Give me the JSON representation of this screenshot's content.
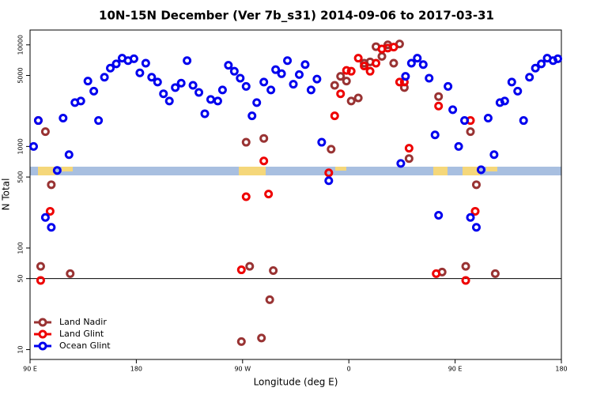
{
  "chart_data": {
    "type": "scatter",
    "title": "10N-15N December (Ver 7b_s31)   2014-09-06 to 2017-03-31",
    "x_label": "Longitude (deg E)",
    "y_label": "N Total",
    "log_y": true,
    "xlim": [
      90,
      540
    ],
    "ylim": [
      8,
      14000
    ],
    "xticks": [
      {
        "value": 90,
        "label": "90 E"
      },
      180,
      {
        "value": 270,
        "label": "90 W"
      },
      {
        "value": 360,
        "label": "0"
      },
      {
        "value": 450,
        "label": "90 E"
      },
      180
    ],
    "yticks": [
      10,
      50,
      100,
      500,
      1000,
      5000,
      10000
    ],
    "hline": 50,
    "legend": "bottom-left",
    "series": [
      {
        "name": "Land Nadir",
        "color": "#993333",
        "x": [
          99,
          103,
          108,
          124,
          269,
          273,
          276,
          286,
          288,
          293,
          296,
          345,
          348,
          353,
          358,
          362,
          368,
          373,
          378,
          383,
          388,
          393,
          398,
          403,
          407,
          411,
          436,
          439,
          459,
          463,
          468,
          484
        ],
        "values": [
          66,
          1400,
          420,
          56,
          12,
          1100,
          66,
          13,
          1200,
          31,
          60,
          940,
          4000,
          4900,
          4400,
          2800,
          3000,
          6600,
          6800,
          9600,
          7700,
          10000,
          6600,
          10200,
          3800,
          760,
          3100,
          58,
          66,
          1400,
          420,
          56
        ]
      },
      {
        "name": "Land Glint",
        "color": "#ee0000",
        "x": [
          97,
          99,
          107,
          269,
          273,
          288,
          292,
          343,
          348,
          353,
          358,
          362,
          368,
          373,
          378,
          383,
          388,
          393,
          398,
          403,
          407,
          411,
          434,
          436,
          459,
          463,
          467
        ],
        "values": [
          1800,
          48,
          230,
          61,
          320,
          720,
          340,
          550,
          2000,
          3300,
          5600,
          5500,
          7400,
          6200,
          5500,
          6600,
          9100,
          9300,
          9500,
          4300,
          4300,
          960,
          56,
          2500,
          48,
          1800,
          230
        ]
      },
      {
        "name": "Ocean Glint",
        "color": "#0000ee",
        "x": [
          93,
          97,
          103,
          108,
          113,
          118,
          123,
          128,
          133,
          139,
          144,
          148,
          153,
          158,
          163,
          168,
          173,
          178,
          183,
          188,
          193,
          198,
          203,
          208,
          213,
          218,
          223,
          228,
          233,
          238,
          243,
          249,
          253,
          258,
          263,
          268,
          273,
          278,
          282,
          288,
          294,
          298,
          303,
          308,
          313,
          318,
          323,
          328,
          333,
          337,
          343,
          404,
          408,
          413,
          418,
          423,
          428,
          433,
          436,
          444,
          448,
          453,
          458,
          463,
          468,
          472,
          478,
          483,
          488,
          492,
          498,
          503,
          508,
          513,
          518,
          523,
          528,
          533,
          537
        ],
        "values": [
          1000,
          1800,
          200,
          160,
          580,
          1900,
          830,
          2700,
          2800,
          4400,
          3500,
          1800,
          4800,
          5900,
          6500,
          7400,
          7000,
          7300,
          5300,
          6600,
          4800,
          4300,
          3300,
          2800,
          3800,
          4200,
          7000,
          4000,
          3400,
          2100,
          2900,
          2800,
          3600,
          6300,
          5500,
          4700,
          3900,
          2000,
          2700,
          4300,
          3600,
          5700,
          5200,
          7000,
          4100,
          5100,
          6400,
          3600,
          4600,
          1100,
          460,
          680,
          4900,
          6600,
          7400,
          6400,
          4700,
          1300,
          210,
          3900,
          2300,
          1000,
          1800,
          200,
          160,
          590,
          1900,
          830,
          2700,
          2800,
          4300,
          3500,
          1800,
          4800,
          5900,
          6500,
          7400,
          7000,
          7300
        ]
      }
    ]
  }
}
